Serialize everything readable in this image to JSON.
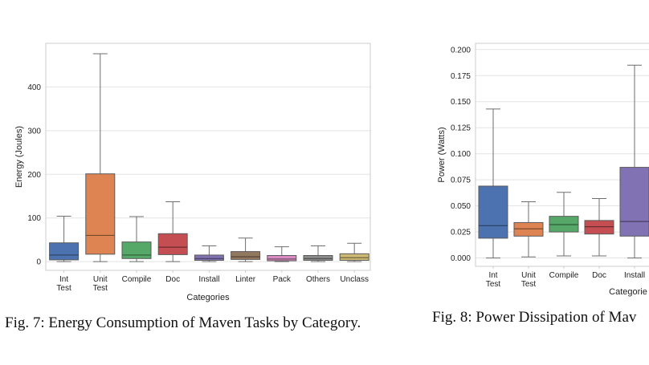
{
  "chart_data": [
    {
      "type": "box",
      "caption": "Fig. 7: Energy Consumption of Maven Tasks by Category.",
      "xlabel": "Categories",
      "ylabel": "Energy (Joules)",
      "ylim": [
        -20,
        500
      ],
      "yticks": [
        "0",
        "100",
        "200",
        "300",
        "400"
      ],
      "ytick_values": [
        0,
        100,
        200,
        300,
        400
      ],
      "grid": true,
      "categories": [
        {
          "label": [
            "Int",
            "Test"
          ],
          "color": "#4c72b0",
          "whisker_low": 0,
          "q1": 4,
          "median": 15,
          "q3": 43,
          "whisker_high": 104
        },
        {
          "label": [
            "Unit",
            "Test"
          ],
          "color": "#dd8452",
          "whisker_low": 0,
          "q1": 17,
          "median": 60,
          "q3": 201,
          "whisker_high": 476
        },
        {
          "label": [
            "Compile"
          ],
          "color": "#55a868",
          "whisker_low": 0,
          "q1": 7,
          "median": 15,
          "q3": 45,
          "whisker_high": 103
        },
        {
          "label": [
            "Doc"
          ],
          "color": "#c44e52",
          "whisker_low": 0,
          "q1": 16,
          "median": 33,
          "q3": 64,
          "whisker_high": 137
        },
        {
          "label": [
            "Install"
          ],
          "color": "#8172b3",
          "whisker_low": 0,
          "q1": 3,
          "median": 7,
          "q3": 15,
          "whisker_high": 36
        },
        {
          "label": [
            "Linter"
          ],
          "color": "#937860",
          "whisker_low": 0,
          "q1": 5,
          "median": 11,
          "q3": 23,
          "whisker_high": 54
        },
        {
          "label": [
            "Pack"
          ],
          "color": "#da8bc3",
          "whisker_low": 0,
          "q1": 2,
          "median": 6,
          "q3": 14,
          "whisker_high": 34
        },
        {
          "label": [
            "Others"
          ],
          "color": "#8c8c8c",
          "whisker_low": 0,
          "q1": 3,
          "median": 7,
          "q3": 14,
          "whisker_high": 36
        },
        {
          "label": [
            "Unclass"
          ],
          "color": "#ccb974",
          "whisker_low": 0,
          "q1": 3,
          "median": 9,
          "q3": 18,
          "whisker_high": 42
        }
      ]
    },
    {
      "type": "box",
      "caption": "Fig. 8: Power Dissipation of Mav",
      "xlabel": "Categorie",
      "ylabel": "Power (Watts)",
      "ylim": [
        -0.008,
        0.206
      ],
      "yticks": [
        "0.000",
        "0.025",
        "0.050",
        "0.075",
        "0.100",
        "0.125",
        "0.150",
        "0.175",
        "0.200"
      ],
      "ytick_values": [
        0,
        0.025,
        0.05,
        0.075,
        0.1,
        0.125,
        0.15,
        0.175,
        0.2
      ],
      "grid": true,
      "categories": [
        {
          "label": [
            "Int",
            "Test"
          ],
          "color": "#4c72b0",
          "whisker_low": 0,
          "q1": 0.019,
          "median": 0.031,
          "q3": 0.069,
          "whisker_high": 0.143
        },
        {
          "label": [
            "Unit",
            "Test"
          ],
          "color": "#dd8452",
          "whisker_low": 0.001,
          "q1": 0.021,
          "median": 0.028,
          "q3": 0.034,
          "whisker_high": 0.054
        },
        {
          "label": [
            "Compile"
          ],
          "color": "#55a868",
          "whisker_low": 0.002,
          "q1": 0.025,
          "median": 0.032,
          "q3": 0.04,
          "whisker_high": 0.063
        },
        {
          "label": [
            "Doc"
          ],
          "color": "#c44e52",
          "whisker_low": 0.002,
          "q1": 0.023,
          "median": 0.03,
          "q3": 0.036,
          "whisker_high": 0.057
        },
        {
          "label": [
            "Install"
          ],
          "color": "#8172b3",
          "whisker_low": 0,
          "q1": 0.021,
          "median": 0.035,
          "q3": 0.087,
          "whisker_high": 0.185
        }
      ]
    }
  ]
}
